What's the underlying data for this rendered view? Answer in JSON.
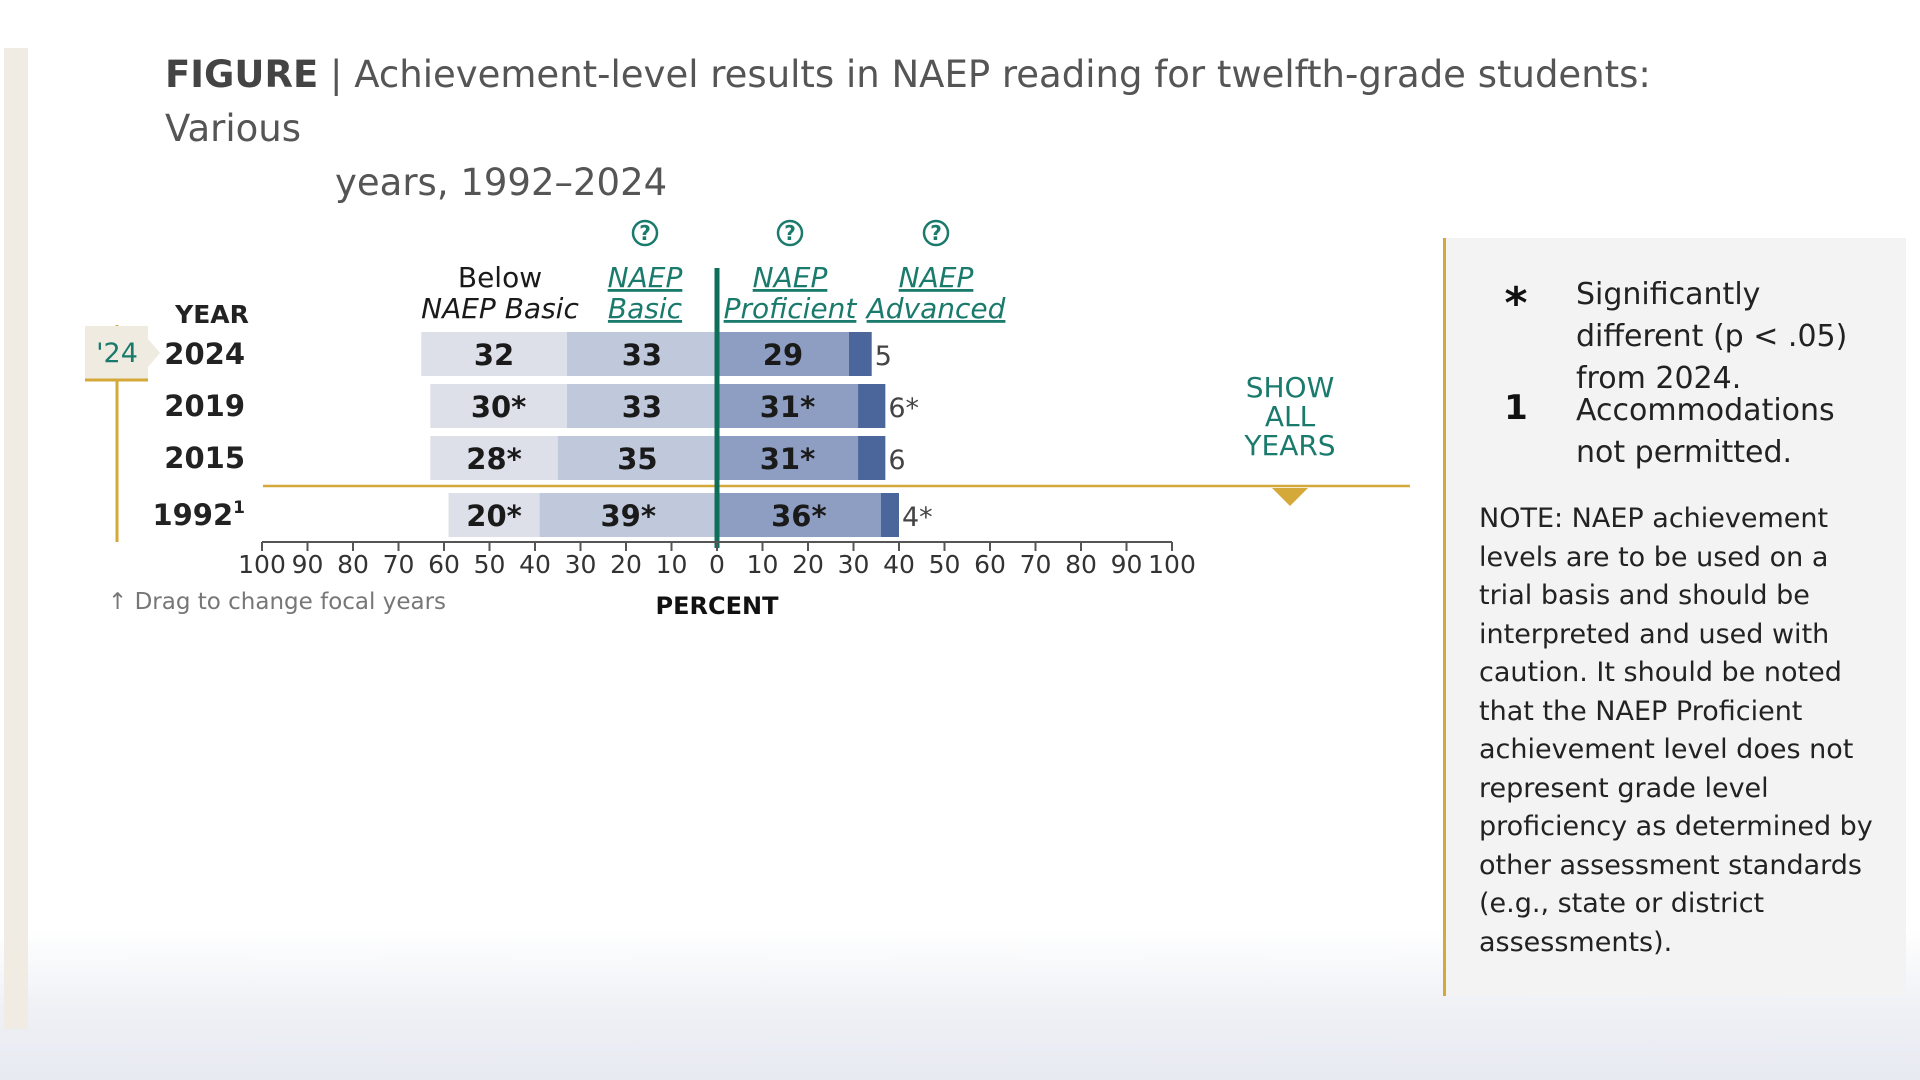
{
  "figure": {
    "label": "FIGURE",
    "separator": "|",
    "title_line1": "Achievement-level results in NAEP reading for twelfth-grade students: Various",
    "title_line2": "years, 1992–2024"
  },
  "focal_tag": "'24",
  "drag_hint": "↑ Drag to change focal years",
  "show_all_years": [
    "SHOW",
    "ALL",
    "YEARS"
  ],
  "legend": {
    "items": [
      {
        "symbol": "*",
        "text": "Significantly different (p < .05) from 2024."
      },
      {
        "symbol": "1",
        "text": "Accommodations not permitted."
      }
    ],
    "note": "NOTE: NAEP achievement levels are to be used on a trial basis and should be interpreted and used with caution. It should be noted that the NAEP Proficient achievement level does not represent grade level proficiency as determined by other assessment standards (e.g., state or district assessments)."
  },
  "colors": {
    "below_basic": "#dde0e9",
    "basic": "#c0c9dc",
    "proficient": "#8d9ec2",
    "advanced": "#4a669a",
    "center_line": "#0f6e5a",
    "accent_gold": "#d4a93a",
    "teal": "#1a7a6c"
  },
  "chart_data": {
    "type": "bar",
    "orientation": "horizontal-diverging",
    "year_header": "YEAR",
    "xlabel": "PERCENT",
    "x_ticks": [
      "100",
      "90",
      "80",
      "70",
      "60",
      "50",
      "40",
      "30",
      "20",
      "10",
      "0",
      "10",
      "20",
      "30",
      "40",
      "50",
      "60",
      "70",
      "80",
      "90",
      "100"
    ],
    "xlim": [
      -100,
      100
    ],
    "columns": [
      {
        "name_line1": "Below",
        "name_line2": "NAEP Basic",
        "help": false
      },
      {
        "name_line1": "NAEP",
        "name_line2": "Basic",
        "help": true
      },
      {
        "name_line1": "NAEP",
        "name_line2": "Proficient",
        "help": true
      },
      {
        "name_line1": "NAEP",
        "name_line2": "Advanced",
        "help": true
      }
    ],
    "rows": [
      {
        "year": "2024",
        "sup": "",
        "below_basic": 32,
        "basic": 33,
        "proficient": 29,
        "advanced": 5,
        "labels": {
          "below_basic": "32",
          "basic": "33",
          "proficient": "29",
          "advanced": "5"
        }
      },
      {
        "year": "2019",
        "sup": "",
        "below_basic": 30,
        "basic": 33,
        "proficient": 31,
        "advanced": 6,
        "labels": {
          "below_basic": "30*",
          "basic": "33",
          "proficient": "31*",
          "advanced": "6*"
        }
      },
      {
        "year": "2015",
        "sup": "",
        "below_basic": 28,
        "basic": 35,
        "proficient": 31,
        "advanced": 6,
        "labels": {
          "below_basic": "28*",
          "basic": "35",
          "proficient": "31*",
          "advanced": "6"
        }
      },
      {
        "year": "1992",
        "sup": "1",
        "below_basic": 20,
        "basic": 39,
        "proficient": 36,
        "advanced": 4,
        "labels": {
          "below_basic": "20*",
          "basic": "39*",
          "proficient": "36*",
          "advanced": "4*"
        }
      }
    ]
  }
}
